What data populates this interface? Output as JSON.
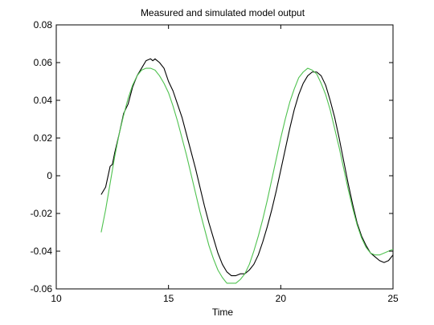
{
  "chart_data": {
    "type": "line",
    "title": "Measured and simulated model output",
    "xlabel": "Time",
    "ylabel": "",
    "xlim": [
      10,
      25
    ],
    "ylim": [
      -0.06,
      0.08
    ],
    "xticks": [
      10,
      15,
      20,
      25
    ],
    "yticks": [
      -0.06,
      -0.04,
      -0.02,
      0,
      0.02,
      0.04,
      0.06,
      0.08
    ],
    "xtick_labels": [
      "10",
      "15",
      "20",
      "25"
    ],
    "ytick_labels": [
      "-0.06",
      "-0.04",
      "-0.02",
      "0",
      "0.02",
      "0.04",
      "0.06",
      "0.08"
    ],
    "grid": false,
    "legend": "none",
    "series": [
      {
        "color": "#000000",
        "x": [
          12.0,
          12.2,
          12.4,
          12.5,
          12.6,
          12.8,
          13.0,
          13.2,
          13.4,
          13.6,
          13.8,
          14.0,
          14.2,
          14.3,
          14.4,
          14.5,
          14.6,
          14.8,
          15.0,
          15.2,
          15.4,
          15.6,
          15.8,
          16.0,
          16.2,
          16.4,
          16.6,
          16.8,
          17.0,
          17.2,
          17.4,
          17.6,
          17.8,
          18.0,
          18.2,
          18.4,
          18.6,
          18.8,
          19.0,
          19.2,
          19.4,
          19.6,
          19.8,
          20.0,
          20.2,
          20.4,
          20.6,
          20.8,
          21.0,
          21.2,
          21.4,
          21.6,
          21.8,
          22.0,
          22.2,
          22.4,
          22.6,
          22.8,
          23.0,
          23.2,
          23.4,
          23.6,
          23.8,
          24.0,
          24.2,
          24.4,
          24.6,
          24.8,
          25.0
        ],
        "y": [
          -0.01,
          -0.006,
          0.005,
          0.006,
          0.012,
          0.022,
          0.033,
          0.038,
          0.047,
          0.053,
          0.057,
          0.061,
          0.062,
          0.061,
          0.062,
          0.061,
          0.06,
          0.057,
          0.05,
          0.045,
          0.038,
          0.031,
          0.022,
          0.013,
          0.004,
          -0.006,
          -0.016,
          -0.025,
          -0.033,
          -0.041,
          -0.047,
          -0.051,
          -0.053,
          -0.053,
          -0.052,
          -0.052,
          -0.05,
          -0.047,
          -0.042,
          -0.035,
          -0.027,
          -0.018,
          -0.008,
          0.003,
          0.014,
          0.025,
          0.035,
          0.043,
          0.049,
          0.053,
          0.055,
          0.055,
          0.053,
          0.048,
          0.04,
          0.031,
          0.02,
          0.008,
          -0.004,
          -0.015,
          -0.025,
          -0.032,
          -0.037,
          -0.041,
          -0.043,
          -0.045,
          -0.046,
          -0.045,
          -0.042
        ]
      },
      {
        "color": "#4fc24f",
        "x": [
          12.0,
          12.2,
          12.4,
          12.6,
          12.8,
          13.0,
          13.2,
          13.4,
          13.6,
          13.8,
          14.0,
          14.2,
          14.4,
          14.6,
          14.8,
          15.0,
          15.2,
          15.4,
          15.6,
          15.8,
          16.0,
          16.2,
          16.4,
          16.6,
          16.8,
          17.0,
          17.2,
          17.4,
          17.6,
          17.8,
          18.0,
          18.2,
          18.4,
          18.6,
          18.8,
          19.0,
          19.2,
          19.4,
          19.6,
          19.8,
          20.0,
          20.2,
          20.4,
          20.6,
          20.8,
          21.0,
          21.2,
          21.4,
          21.6,
          21.8,
          22.0,
          22.2,
          22.4,
          22.6,
          22.8,
          23.0,
          23.2,
          23.4,
          23.6,
          23.8,
          24.0,
          24.2,
          24.4,
          24.6,
          24.8,
          25.0
        ],
        "y": [
          -0.03,
          -0.018,
          -0.004,
          0.01,
          0.022,
          0.032,
          0.041,
          0.048,
          0.053,
          0.056,
          0.057,
          0.057,
          0.056,
          0.053,
          0.049,
          0.044,
          0.037,
          0.029,
          0.02,
          0.011,
          0.001,
          -0.009,
          -0.019,
          -0.028,
          -0.037,
          -0.044,
          -0.05,
          -0.054,
          -0.057,
          -0.057,
          -0.057,
          -0.055,
          -0.052,
          -0.047,
          -0.04,
          -0.032,
          -0.023,
          -0.013,
          -0.002,
          0.009,
          0.02,
          0.03,
          0.039,
          0.046,
          0.052,
          0.055,
          0.057,
          0.056,
          0.054,
          0.049,
          0.043,
          0.035,
          0.025,
          0.015,
          0.004,
          -0.007,
          -0.017,
          -0.026,
          -0.033,
          -0.038,
          -0.041,
          -0.042,
          -0.042,
          -0.041,
          -0.04,
          -0.039
        ]
      }
    ]
  }
}
